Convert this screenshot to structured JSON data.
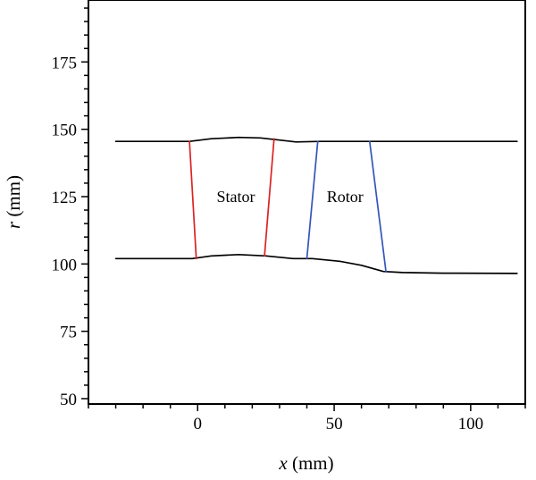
{
  "chart_data": {
    "type": "line",
    "xlabel_var": "x",
    "xlabel_unit": " (mm)",
    "ylabel_var": "r",
    "ylabel_unit": " (mm)",
    "xlim": [
      -40,
      120
    ],
    "ylim": [
      48,
      198
    ],
    "x_ticks": [
      0,
      50,
      100
    ],
    "y_ticks": [
      50,
      75,
      100,
      125,
      150,
      175
    ],
    "grid": false,
    "series": [
      {
        "role": "shroud",
        "color": "#000000",
        "points": [
          [
            -30,
            145.5
          ],
          [
            -3,
            145.5
          ],
          [
            5,
            146.5
          ],
          [
            15,
            147
          ],
          [
            23,
            146.8
          ],
          [
            30,
            146
          ],
          [
            36,
            145.3
          ],
          [
            45,
            145.5
          ],
          [
            60,
            145.5
          ],
          [
            80,
            145.5
          ],
          [
            117,
            145.5
          ]
        ]
      },
      {
        "role": "hub",
        "color": "#000000",
        "points": [
          [
            -30,
            102
          ],
          [
            -2,
            102
          ],
          [
            5,
            103
          ],
          [
            15,
            103.5
          ],
          [
            25,
            103
          ],
          [
            35,
            102
          ],
          [
            42,
            102
          ],
          [
            52,
            101
          ],
          [
            60,
            99.5
          ],
          [
            68,
            97.2
          ],
          [
            75,
            96.8
          ],
          [
            90,
            96.6
          ],
          [
            117,
            96.5
          ]
        ]
      },
      {
        "role": "stator-leading-edge",
        "color": "#dd2222",
        "points": [
          [
            -3,
            145.5
          ],
          [
            -0.5,
            102
          ]
        ]
      },
      {
        "role": "stator-trailing-edge",
        "color": "#dd2222",
        "points": [
          [
            28,
            146.5
          ],
          [
            24.5,
            103
          ]
        ]
      },
      {
        "role": "rotor-leading-edge",
        "color": "#3355bb",
        "points": [
          [
            44,
            145.5
          ],
          [
            40,
            102
          ]
        ]
      },
      {
        "role": "rotor-trailing-edge",
        "color": "#3355bb",
        "points": [
          [
            63,
            145.5
          ],
          [
            69,
            97
          ]
        ]
      }
    ],
    "annotations": [
      {
        "text": "Stator",
        "x": 14,
        "y": 125
      },
      {
        "text": "Rotor",
        "x": 54,
        "y": 125
      }
    ]
  }
}
